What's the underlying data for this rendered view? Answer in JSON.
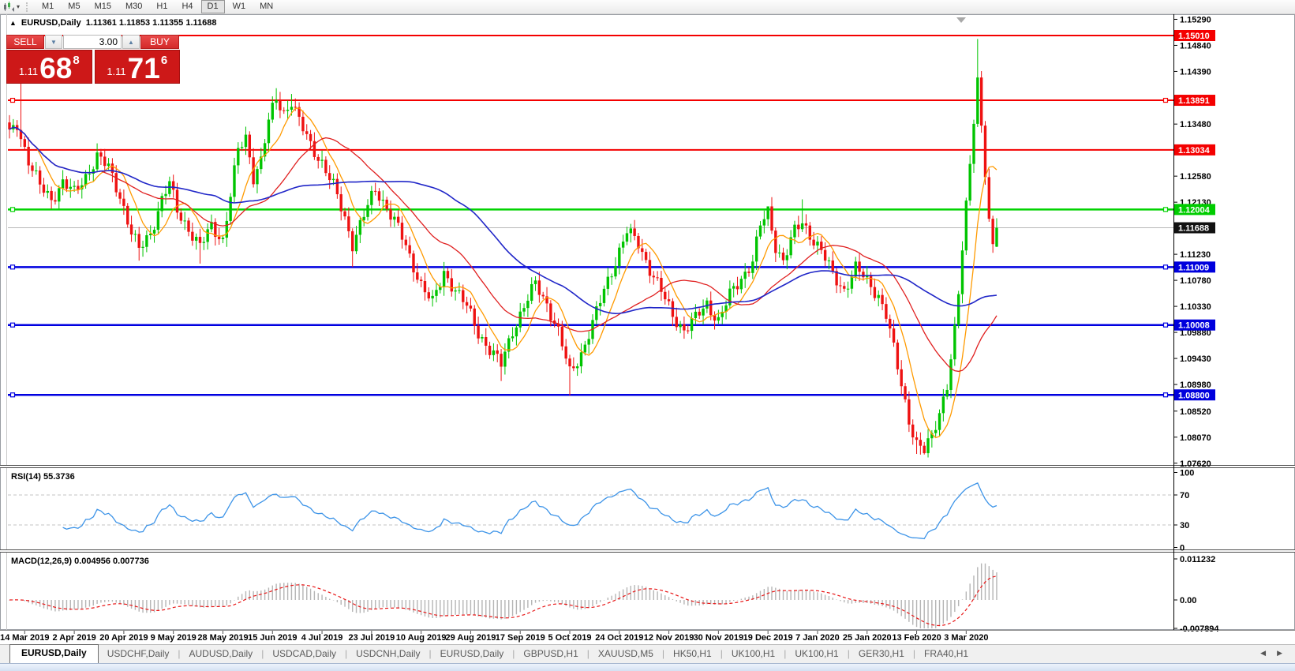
{
  "toolbar": {
    "chart_icon": "new-chart-icon",
    "dropdown_icon": "▾",
    "timeframes": [
      "M1",
      "M5",
      "M15",
      "M30",
      "H1",
      "H4",
      "D1",
      "W1",
      "MN"
    ],
    "active_timeframe": "D1"
  },
  "chart": {
    "collapse_icon": "▲",
    "title": "EURUSD,Daily",
    "ohlc_text": "1.11361 1.11853 1.11355 1.11688",
    "trade_panel": {
      "sell_label": "SELL",
      "buy_label": "BUY",
      "volume": "3.00",
      "spinner_down_icon": "▼",
      "spinner_up_icon": "▲",
      "sell_price": {
        "prefix": "1.11",
        "main": "68",
        "sup": "8"
      },
      "buy_price": {
        "prefix": "1.11",
        "main": "71",
        "sup": "6"
      }
    }
  },
  "chart_data": {
    "type": "candlestick",
    "symbol": "EURUSD",
    "timeframe": "Daily",
    "current_ohlc": {
      "open": 1.11361,
      "high": 1.11853,
      "low": 1.11355,
      "close": 1.11688
    },
    "n_bars": 260,
    "up_color": "#00c400",
    "down_color": "#ee1111",
    "close_anchors": [
      [
        0,
        1.133
      ],
      [
        2,
        1.1348
      ],
      [
        5,
        1.1285
      ],
      [
        8,
        1.124
      ],
      [
        11,
        1.1218
      ],
      [
        14,
        1.1248
      ],
      [
        17,
        1.1228
      ],
      [
        20,
        1.1258
      ],
      [
        23,
        1.1292
      ],
      [
        26,
        1.1272
      ],
      [
        29,
        1.1225
      ],
      [
        32,
        1.116
      ],
      [
        34,
        1.113
      ],
      [
        37,
        1.116
      ],
      [
        40,
        1.1218
      ],
      [
        42,
        1.1245
      ],
      [
        44,
        1.1198
      ],
      [
        47,
        1.1168
      ],
      [
        50,
        1.1135
      ],
      [
        53,
        1.1172
      ],
      [
        56,
        1.1148
      ],
      [
        58,
        1.1225
      ],
      [
        60,
        1.1302
      ],
      [
        62,
        1.1325
      ],
      [
        64,
        1.1258
      ],
      [
        66,
        1.1285
      ],
      [
        68,
        1.1352
      ],
      [
        70,
        1.1392
      ],
      [
        72,
        1.1368
      ],
      [
        74,
        1.1388
      ],
      [
        76,
        1.1352
      ],
      [
        79,
        1.1312
      ],
      [
        82,
        1.1282
      ],
      [
        85,
        1.124
      ],
      [
        88,
        1.1185
      ],
      [
        90,
        1.1142
      ],
      [
        93,
        1.119
      ],
      [
        96,
        1.1235
      ],
      [
        99,
        1.1205
      ],
      [
        102,
        1.1168
      ],
      [
        105,
        1.1118
      ],
      [
        108,
        1.1072
      ],
      [
        111,
        1.1038
      ],
      [
        114,
        1.1092
      ],
      [
        117,
        1.1062
      ],
      [
        120,
        1.1032
      ],
      [
        123,
        1.0988
      ],
      [
        126,
        1.0958
      ],
      [
        129,
        1.0932
      ],
      [
        132,
        1.0992
      ],
      [
        135,
        1.1032
      ],
      [
        138,
        1.1072
      ],
      [
        141,
        1.1038
      ],
      [
        144,
        1.0988
      ],
      [
        147,
        1.0918
      ],
      [
        150,
        1.0952
      ],
      [
        153,
        1.1002
      ],
      [
        156,
        1.1062
      ],
      [
        159,
        1.1112
      ],
      [
        162,
        1.1162
      ],
      [
        165,
        1.1142
      ],
      [
        168,
        1.1098
      ],
      [
        171,
        1.1058
      ],
      [
        174,
        1.1018
      ],
      [
        177,
        1.0992
      ],
      [
        180,
        1.1012
      ],
      [
        183,
        1.1038
      ],
      [
        186,
        1.1008
      ],
      [
        189,
        1.1052
      ],
      [
        192,
        1.1082
      ],
      [
        195,
        1.1112
      ],
      [
        197,
        1.1172
      ],
      [
        199,
        1.1196
      ],
      [
        201,
        1.1138
      ],
      [
        203,
        1.1112
      ],
      [
        206,
        1.1162
      ],
      [
        208,
        1.1178
      ],
      [
        210,
        1.1158
      ],
      [
        213,
        1.1128
      ],
      [
        216,
        1.1088
      ],
      [
        219,
        1.1062
      ],
      [
        222,
        1.1098
      ],
      [
        225,
        1.1078
      ],
      [
        228,
        1.1052
      ],
      [
        230,
        1.1018
      ],
      [
        232,
        1.0958
      ],
      [
        234,
        1.0898
      ],
      [
        236,
        1.0838
      ],
      [
        238,
        1.0795
      ],
      [
        240,
        1.0782
      ],
      [
        242,
        1.0808
      ],
      [
        244,
        1.0852
      ],
      [
        246,
        1.0898
      ],
      [
        248,
        1.0988
      ],
      [
        249,
        1.1052
      ],
      [
        250,
        1.1132
      ],
      [
        251,
        1.1208
      ],
      [
        252,
        1.1282
      ],
      [
        253,
        1.1362
      ],
      [
        254,
        1.1428
      ],
      [
        255,
        1.1342
      ],
      [
        256,
        1.1262
      ],
      [
        257,
        1.1178
      ],
      [
        258,
        1.1128
      ],
      [
        259,
        1.11688
      ]
    ],
    "bar_overrides": {
      "3": {
        "h": 1.1438
      },
      "34": {
        "l": 1.1112
      },
      "50": {
        "l": 1.1107
      },
      "70": {
        "h": 1.141
      },
      "74": {
        "h": 1.14
      },
      "90": {
        "l": 1.1101
      },
      "129": {
        "l": 1.0904
      },
      "147": {
        "l": 1.0879
      },
      "199": {
        "h": 1.1203
      },
      "208": {
        "h": 1.1218
      },
      "238": {
        "l": 1.0778
      },
      "240": {
        "l": 1.0777
      },
      "254": {
        "h": 1.1495
      },
      "259": {
        "o": 1.11361,
        "h": 1.11853,
        "l": 1.11355,
        "c": 1.11688
      }
    },
    "moving_averages": [
      {
        "period": 8,
        "color": "#ff9a00",
        "width": 1.3
      },
      {
        "period": 25,
        "color": "#e02020",
        "width": 1.3
      },
      {
        "period": 55,
        "color": "#2026c8",
        "width": 1.6
      }
    ],
    "sr_levels": [
      {
        "price": 1.1501,
        "color": "#f40000",
        "width": 2,
        "handles": false
      },
      {
        "price": 1.13891,
        "color": "#f40000",
        "width": 2,
        "handles": true
      },
      {
        "price": 1.13034,
        "color": "#f40000",
        "width": 2,
        "handles": false
      },
      {
        "price": 1.12004,
        "color": "#00d200",
        "width": 2.5,
        "handles": true
      },
      {
        "price": 1.11009,
        "color": "#0000e0",
        "width": 2.5,
        "handles": true
      },
      {
        "price": 1.10008,
        "color": "#0000e0",
        "width": 2.5,
        "handles": true
      },
      {
        "price": 1.088,
        "color": "#0000e0",
        "width": 2.5,
        "handles": true
      }
    ],
    "current_price": 1.11688,
    "current_price_line_color": "#b8b8b8",
    "y_axis": {
      "ticks": [
        "1.15290",
        "1.14840",
        "1.14390",
        "1.13480",
        "1.12580",
        "1.12130",
        "1.11230",
        "1.10780",
        "1.10330",
        "1.09880",
        "1.09430",
        "1.08980",
        "1.08520",
        "1.08070",
        "1.07620"
      ],
      "level_labels": [
        {
          "text": "1.15010",
          "bg": "#f40000"
        },
        {
          "text": "1.13891",
          "bg": "#f40000"
        },
        {
          "text": "1.13034",
          "bg": "#f40000"
        },
        {
          "text": "1.12004",
          "bg": "#00cc00"
        },
        {
          "text": "1.11688",
          "bg": "#111111"
        },
        {
          "text": "1.11009",
          "bg": "#0000dd"
        },
        {
          "text": "1.10008",
          "bg": "#0000dd"
        },
        {
          "text": "1.08800",
          "bg": "#0000dd"
        }
      ],
      "ylim": [
        1.07894,
        1.15369
      ]
    },
    "x_axis": {
      "labels": [
        "14 Mar 2019",
        "2 Apr 2019",
        "20 Apr 2019",
        "9 May 2019",
        "28 May 2019",
        "15 Jun 2019",
        "4 Jul 2019",
        "23 Jul 2019",
        "10 Aug 2019",
        "29 Aug 2019",
        "17 Sep 2019",
        "5 Oct 2019",
        "24 Oct 2019",
        "12 Nov 2019",
        "30 Nov 2019",
        "19 Dec 2019",
        "7 Jan 2020",
        "25 Jan 2020",
        "13 Feb 2020",
        "3 Mar 2020"
      ],
      "first_label_bar": 4,
      "bars_per_label": 13
    },
    "indicators": [
      {
        "name": "RSI",
        "label": "RSI(14) 55.3736",
        "period": 14,
        "value": 55.3736,
        "levels": [
          70,
          30
        ],
        "axis_labels": [
          "100",
          "70",
          "30",
          "0"
        ],
        "line_color": "#3d94e8",
        "grid": "dashed"
      },
      {
        "name": "MACD",
        "label": "MACD(12,26,9) 0.004956 0.007736",
        "params": [
          12,
          26,
          9
        ],
        "values": [
          0.004956,
          0.007736
        ],
        "axis_labels": [
          "0.011232",
          "0.00",
          "-0.007894"
        ],
        "axis_values": [
          0.011232,
          0.0,
          -0.007894
        ],
        "hist_color": "#b5b5b5",
        "signal_color": "#e81717",
        "signal_style": "dashed"
      }
    ]
  },
  "tabs": {
    "items": [
      {
        "label": "EURUSD,Daily",
        "active": true
      },
      {
        "label": "USDCHF,Daily",
        "active": false
      },
      {
        "label": "AUDUSD,Daily",
        "active": false
      },
      {
        "label": "USDCAD,Daily",
        "active": false
      },
      {
        "label": "USDCNH,Daily",
        "active": false
      },
      {
        "label": "EURUSD,Daily",
        "active": false
      },
      {
        "label": "GBPUSD,H1",
        "active": false
      },
      {
        "label": "XAUUSD,M5",
        "active": false
      },
      {
        "label": "HK50,H1",
        "active": false
      },
      {
        "label": "UK100,H1",
        "active": false
      },
      {
        "label": "UK100,H1",
        "active": false
      },
      {
        "label": "GER30,H1",
        "active": false
      },
      {
        "label": "FRA40,H1",
        "active": false
      }
    ],
    "scroll_left_icon": "◀",
    "scroll_right_icon": "▶"
  }
}
